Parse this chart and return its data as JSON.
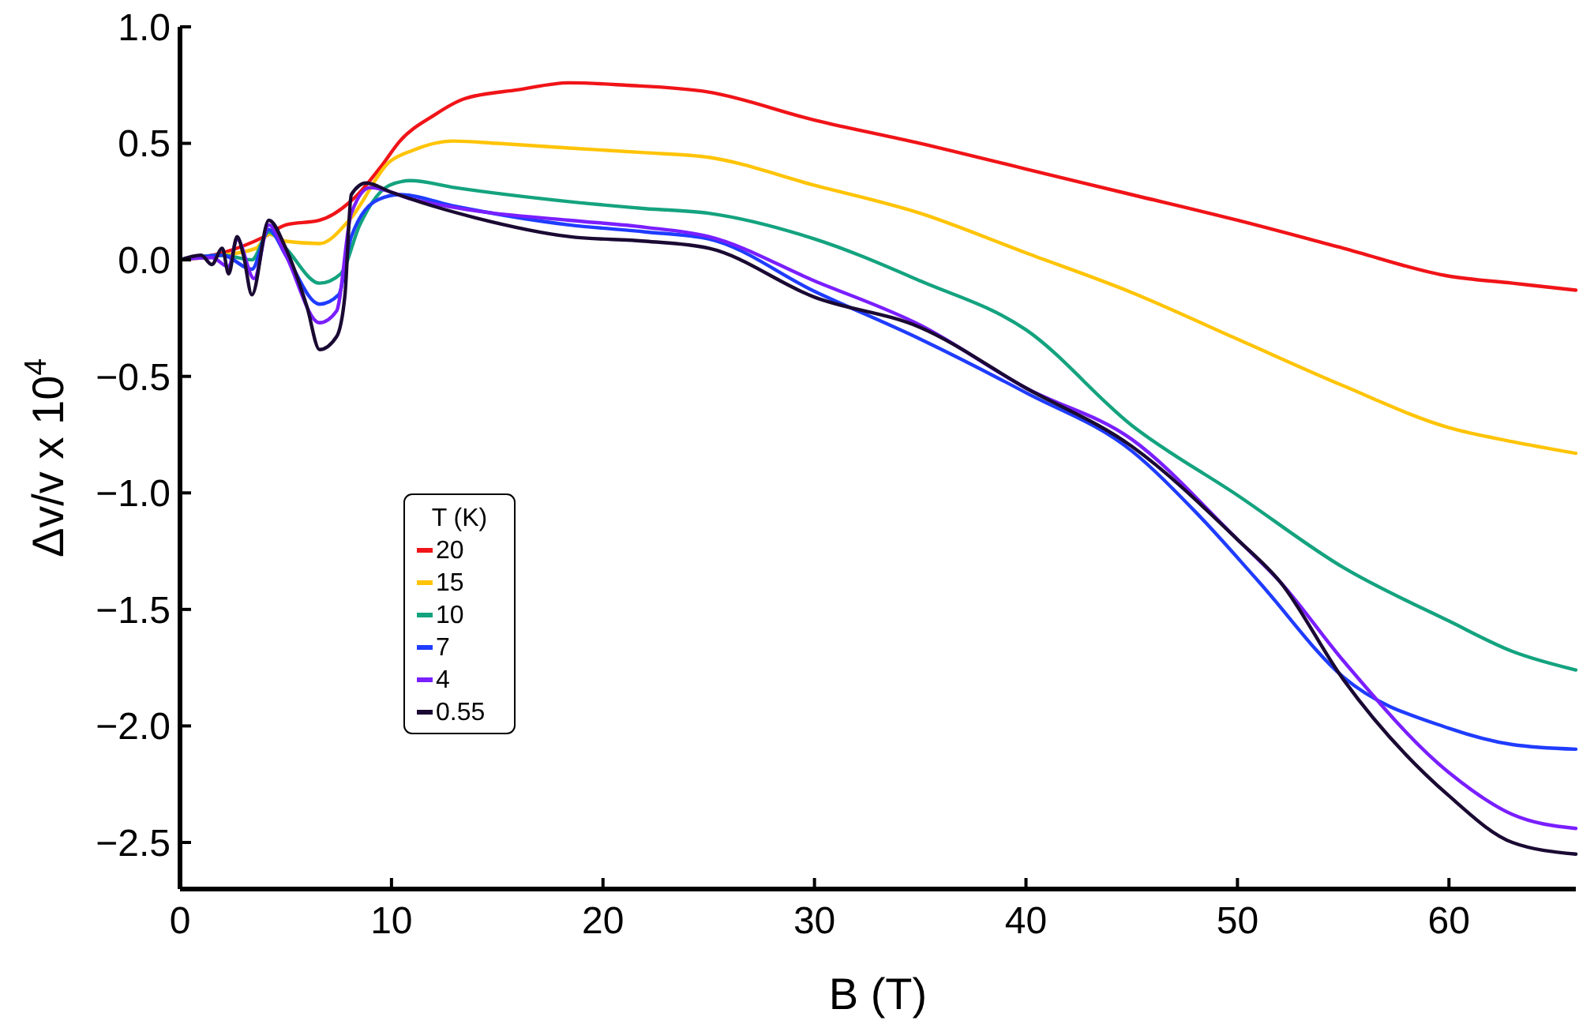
{
  "chart_data": {
    "type": "line",
    "xlabel": "B (T)",
    "ylabel": "Δv/v x 10$^{4}$",
    "legend_title": "T (K)",
    "legend": "left",
    "xlim": [
      0,
      66
    ],
    "ylim": [
      -2.7,
      1.0
    ],
    "xticks": [
      0,
      10,
      20,
      30,
      40,
      50,
      60
    ],
    "yticks": [
      {
        "value": -2.5,
        "label": "−2.5"
      },
      {
        "value": -2,
        "label": "−2.0"
      },
      {
        "value": -1.5,
        "label": "−1.5"
      },
      {
        "value": -1,
        "label": "−1.0"
      },
      {
        "value": -0.5,
        "label": "−0.5"
      },
      {
        "value": 0,
        "label": "0.0"
      },
      0.5,
      {
        "value": 1,
        "label": "1.0"
      }
    ],
    "grid": false,
    "marker": "none",
    "line_style": "solid",
    "series": [
      {
        "name": "20",
        "color": "#f01418",
        "x": [
          0,
          2,
          4,
          5,
          6.6,
          8.4,
          9.5,
          10.4,
          12,
          13.4,
          16,
          18.4,
          21,
          25,
          30,
          35,
          40,
          45,
          50,
          55,
          60,
          63,
          66
        ],
        "values": [
          0,
          0.03,
          0.1,
          0.15,
          0.17,
          0.28,
          0.4,
          0.51,
          0.62,
          0.69,
          0.73,
          0.76,
          0.75,
          0.72,
          0.6,
          0.5,
          0.39,
          0.28,
          0.17,
          0.05,
          -0.07,
          -0.1,
          -0.13
        ]
      },
      {
        "name": "15",
        "color": "#ffc408",
        "x": [
          0,
          2,
          3.6,
          4.2,
          5,
          6.6,
          8,
          9.9,
          11,
          12.9,
          15,
          18.4,
          22,
          25,
          30,
          35,
          40,
          45,
          50,
          55,
          60,
          63,
          66
        ],
        "values": [
          0,
          0.02,
          0.05,
          0.11,
          0.08,
          0.07,
          0.17,
          0.42,
          0.47,
          0.51,
          0.5,
          0.48,
          0.46,
          0.44,
          0.32,
          0.2,
          0.03,
          -0.14,
          -0.34,
          -0.54,
          -0.72,
          -0.78,
          -0.83
        ]
      },
      {
        "name": "10",
        "color": "#14a37f",
        "x": [
          0,
          2,
          3.4,
          4.2,
          5,
          6.6,
          7.6,
          8.5,
          9.9,
          10.9,
          13,
          18.4,
          22,
          25,
          30,
          35,
          40,
          45,
          50,
          55,
          60,
          63,
          66
        ],
        "values": [
          0,
          0.02,
          0,
          0.12,
          0.05,
          -0.1,
          -0.06,
          0.15,
          0.32,
          0.34,
          0.31,
          0.25,
          0.22,
          0.2,
          0.09,
          -0.09,
          -0.3,
          -0.71,
          -1.01,
          -1.32,
          -1.55,
          -1.68,
          -1.76
        ]
      },
      {
        "name": "7",
        "color": "#1f3cff",
        "x": [
          0,
          2,
          3.4,
          4.2,
          5,
          6.6,
          7.5,
          8.1,
          9.4,
          10.4,
          13,
          18.4,
          22,
          25,
          30,
          35,
          40,
          45,
          48,
          51,
          55,
          60,
          63,
          66
        ],
        "values": [
          0,
          0.02,
          -0.04,
          0.13,
          0.02,
          -0.19,
          -0.15,
          0.1,
          0.26,
          0.28,
          0.23,
          0.15,
          0.12,
          0.09,
          -0.135,
          -0.34,
          -0.57,
          -0.82,
          -1.08,
          -1.38,
          -1.79,
          -2.01,
          -2.08,
          -2.1
        ]
      },
      {
        "name": "4",
        "color": "#7a1fff",
        "x": [
          0,
          1.5,
          2.3,
          2.7,
          3.5,
          4.2,
          5,
          6.6,
          7.4,
          8.1,
          9,
          11,
          14,
          18.4,
          22,
          25,
          30,
          35,
          40,
          45,
          50,
          52,
          55,
          60,
          63,
          66
        ],
        "values": [
          0,
          0.01,
          -0.03,
          0.09,
          -0.08,
          0.15,
          0.02,
          -0.27,
          -0.22,
          0.2,
          0.31,
          0.26,
          0.21,
          0.17,
          0.14,
          0.1,
          -0.09,
          -0.28,
          -0.55,
          -0.77,
          -1.2,
          -1.38,
          -1.72,
          -2.2,
          -2.38,
          -2.44
        ]
      },
      {
        "name": "0.55",
        "color": "#1a0a33",
        "x": [
          0,
          1,
          1.5,
          2,
          2.3,
          2.7,
          3,
          3.4,
          4.2,
          5,
          6,
          6.6,
          7.4,
          7.8,
          8.1,
          8.8,
          10,
          12,
          14,
          18.4,
          22,
          25,
          30,
          35,
          40,
          45,
          50,
          52,
          55,
          60,
          63,
          66
        ],
        "values": [
          0,
          0.02,
          -0.02,
          0.05,
          -0.06,
          0.1,
          0.02,
          -0.15,
          0.17,
          0.05,
          -0.2,
          -0.385,
          -0.33,
          -0.15,
          0.28,
          0.33,
          0.29,
          0.23,
          0.18,
          0.1,
          0.08,
          0.05,
          -0.16,
          -0.29,
          -0.55,
          -0.8,
          -1.2,
          -1.38,
          -1.8,
          -2.3,
          -2.5,
          -2.55
        ]
      }
    ]
  }
}
